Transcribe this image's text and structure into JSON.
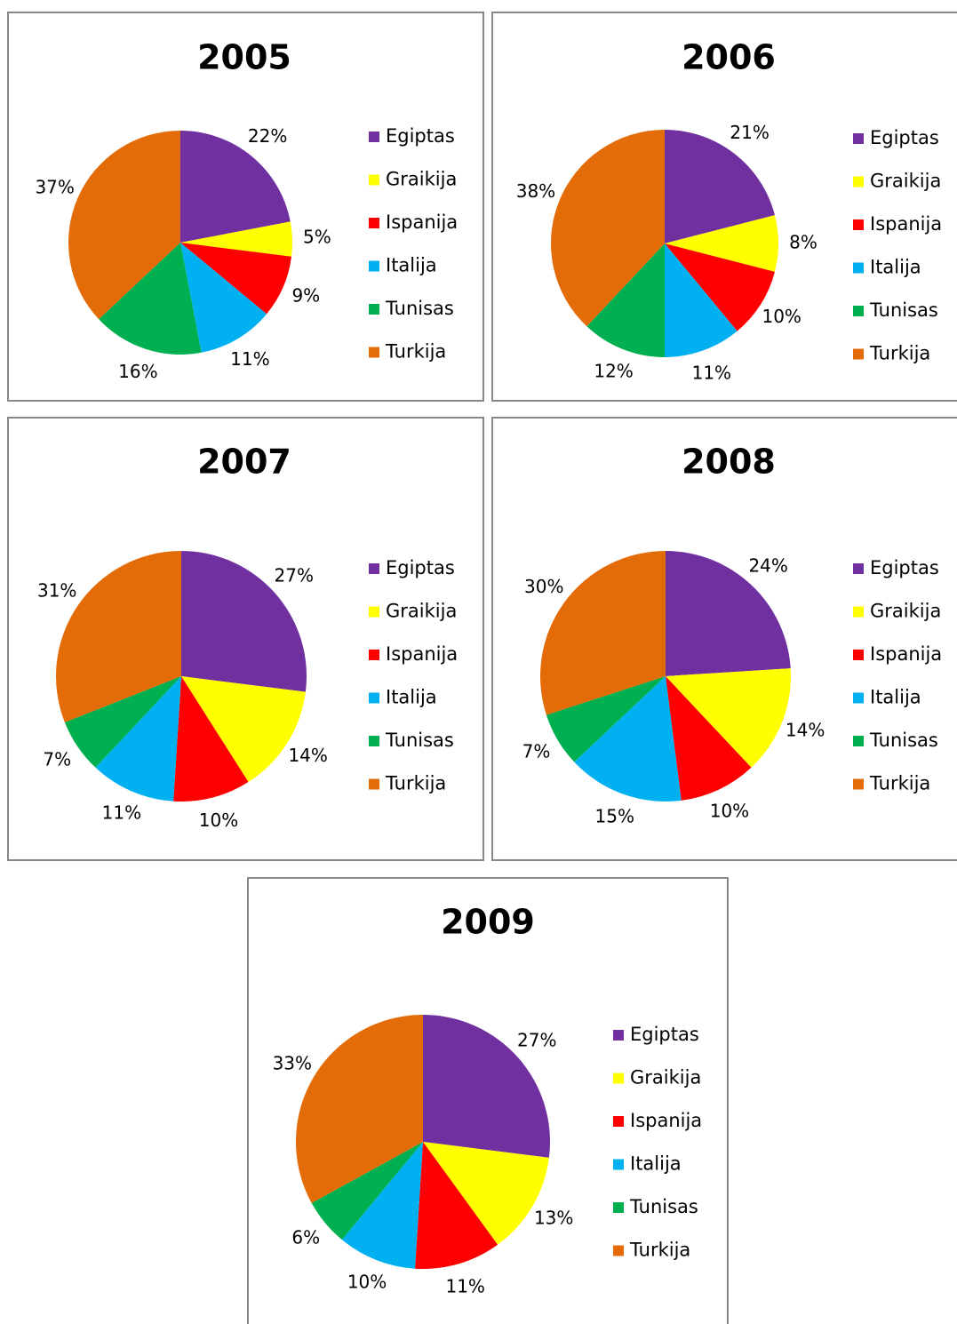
{
  "chart_data": [
    {
      "type": "pie",
      "title": "2005",
      "categories": [
        "Egiptas",
        "Graikija",
        "Ispanija",
        "Italija",
        "Tunisas",
        "Turkija"
      ],
      "values": [
        22,
        5,
        9,
        11,
        16,
        37
      ],
      "value_labels": [
        "22%",
        "5%",
        "9%",
        "11%",
        "16%",
        "37%"
      ],
      "colors": [
        "#7030a0",
        "#ffff00",
        "#ff0000",
        "#00b0f0",
        "#00b050",
        "#e36c09"
      ],
      "legend": "right"
    },
    {
      "type": "pie",
      "title": "2006",
      "categories": [
        "Egiptas",
        "Graikija",
        "Ispanija",
        "Italija",
        "Tunisas",
        "Turkija"
      ],
      "values": [
        21,
        8,
        10,
        11,
        12,
        38
      ],
      "value_labels": [
        "21%",
        "8%",
        "10%",
        "11%",
        "12%",
        "38%"
      ],
      "colors": [
        "#7030a0",
        "#ffff00",
        "#ff0000",
        "#00b0f0",
        "#00b050",
        "#e36c09"
      ],
      "legend": "right"
    },
    {
      "type": "pie",
      "title": "2007",
      "categories": [
        "Egiptas",
        "Graikija",
        "Ispanija",
        "Italija",
        "Tunisas",
        "Turkija"
      ],
      "values": [
        27,
        14,
        10,
        11,
        7,
        31
      ],
      "value_labels": [
        "27%",
        "14%",
        "10%",
        "11%",
        "7%",
        "31%"
      ],
      "colors": [
        "#7030a0",
        "#ffff00",
        "#ff0000",
        "#00b0f0",
        "#00b050",
        "#e36c09"
      ],
      "legend": "right"
    },
    {
      "type": "pie",
      "title": "2008",
      "categories": [
        "Egiptas",
        "Graikija",
        "Ispanija",
        "Italija",
        "Tunisas",
        "Turkija"
      ],
      "values": [
        24,
        14,
        10,
        15,
        7,
        30
      ],
      "value_labels": [
        "24%",
        "14%",
        "10%",
        "15%",
        "7%",
        "30%"
      ],
      "colors": [
        "#7030a0",
        "#ffff00",
        "#ff0000",
        "#00b0f0",
        "#00b050",
        "#e36c09"
      ],
      "legend": "right"
    },
    {
      "type": "pie",
      "title": "2009",
      "categories": [
        "Egiptas",
        "Graikija",
        "Ispanija",
        "Italija",
        "Tunisas",
        "Turkija"
      ],
      "values": [
        27,
        13,
        11,
        10,
        6,
        33
      ],
      "value_labels": [
        "27%",
        "13%",
        "11%",
        "10%",
        "6%",
        "33%"
      ],
      "colors": [
        "#7030a0",
        "#ffff00",
        "#ff0000",
        "#00b0f0",
        "#00b050",
        "#e36c09"
      ],
      "legend": "right"
    }
  ]
}
